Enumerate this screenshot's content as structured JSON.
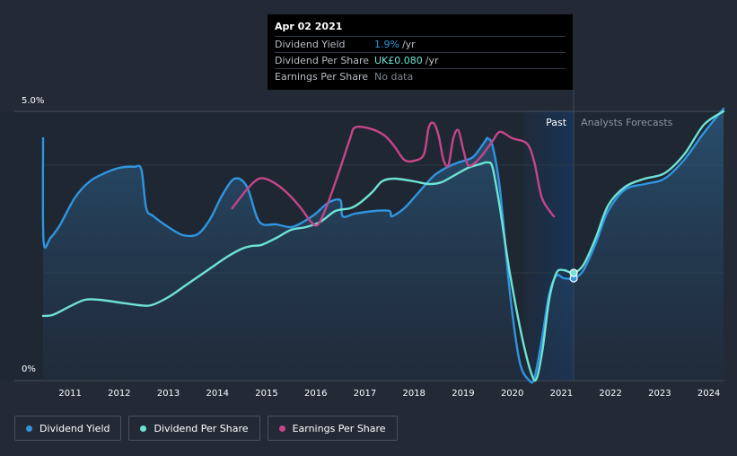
{
  "chart_data": {
    "type": "line",
    "title": "",
    "xlabel": "",
    "ylabel": "",
    "x_ticks": [
      "2011",
      "2012",
      "2013",
      "2014",
      "2015",
      "2016",
      "2017",
      "2018",
      "2019",
      "2020",
      "2021",
      "2022",
      "2023",
      "2024"
    ],
    "y_ticks": [
      "5.0%",
      "0%"
    ],
    "ylim": [
      0,
      5.0
    ],
    "xlim": [
      2010.45,
      2024.3
    ],
    "past_label": "Past",
    "forecast_label": "Analysts Forecasts",
    "forecast_start": 2021.25,
    "past_band_start": 2020.25,
    "series": [
      {
        "name": "Dividend Yield",
        "color": "#2f95e0",
        "area": true,
        "points": [
          [
            2010.45,
            4.5
          ],
          [
            2010.46,
            2.6
          ],
          [
            2010.6,
            2.65
          ],
          [
            2010.8,
            2.9
          ],
          [
            2011.1,
            3.4
          ],
          [
            2011.4,
            3.7
          ],
          [
            2011.7,
            3.85
          ],
          [
            2012.0,
            3.95
          ],
          [
            2012.3,
            3.97
          ],
          [
            2012.45,
            3.92
          ],
          [
            2012.55,
            3.2
          ],
          [
            2012.7,
            3.05
          ],
          [
            2013.0,
            2.85
          ],
          [
            2013.3,
            2.7
          ],
          [
            2013.6,
            2.72
          ],
          [
            2013.85,
            3.0
          ],
          [
            2014.1,
            3.45
          ],
          [
            2014.35,
            3.75
          ],
          [
            2014.6,
            3.6
          ],
          [
            2014.85,
            2.95
          ],
          [
            2015.2,
            2.9
          ],
          [
            2015.5,
            2.85
          ],
          [
            2015.75,
            2.95
          ],
          [
            2016.0,
            3.1
          ],
          [
            2016.25,
            3.3
          ],
          [
            2016.5,
            3.35
          ],
          [
            2016.55,
            3.05
          ],
          [
            2016.8,
            3.1
          ],
          [
            2017.2,
            3.15
          ],
          [
            2017.5,
            3.15
          ],
          [
            2017.55,
            3.05
          ],
          [
            2017.8,
            3.2
          ],
          [
            2018.1,
            3.5
          ],
          [
            2018.4,
            3.8
          ],
          [
            2018.65,
            3.95
          ],
          [
            2018.9,
            4.05
          ],
          [
            2019.2,
            4.15
          ],
          [
            2019.45,
            4.45
          ],
          [
            2019.5,
            4.5
          ],
          [
            2019.6,
            4.35
          ],
          [
            2019.75,
            3.55
          ],
          [
            2019.95,
            1.65
          ],
          [
            2020.15,
            0.35
          ],
          [
            2020.35,
            0.0
          ],
          [
            2020.45,
            0.05
          ],
          [
            2020.6,
            0.75
          ],
          [
            2020.75,
            1.6
          ],
          [
            2020.9,
            1.95
          ],
          [
            2021.05,
            1.9
          ],
          [
            2021.25,
            1.9
          ],
          [
            2021.45,
            2.05
          ],
          [
            2021.7,
            2.55
          ],
          [
            2021.95,
            3.15
          ],
          [
            2022.3,
            3.55
          ],
          [
            2022.7,
            3.65
          ],
          [
            2023.1,
            3.75
          ],
          [
            2023.5,
            4.1
          ],
          [
            2023.9,
            4.6
          ],
          [
            2024.3,
            5.05
          ]
        ]
      },
      {
        "name": "Dividend Per Share",
        "color": "#6ee3d4",
        "area": false,
        "points": [
          [
            2010.45,
            1.2
          ],
          [
            2010.65,
            1.22
          ],
          [
            2011.0,
            1.38
          ],
          [
            2011.3,
            1.5
          ],
          [
            2011.6,
            1.5
          ],
          [
            2012.0,
            1.45
          ],
          [
            2012.4,
            1.4
          ],
          [
            2012.65,
            1.4
          ],
          [
            2013.0,
            1.55
          ],
          [
            2013.4,
            1.8
          ],
          [
            2013.8,
            2.05
          ],
          [
            2014.2,
            2.3
          ],
          [
            2014.5,
            2.45
          ],
          [
            2014.7,
            2.5
          ],
          [
            2014.9,
            2.52
          ],
          [
            2015.2,
            2.65
          ],
          [
            2015.5,
            2.8
          ],
          [
            2015.8,
            2.85
          ],
          [
            2016.1,
            2.95
          ],
          [
            2016.4,
            3.15
          ],
          [
            2016.7,
            3.2
          ],
          [
            2016.9,
            3.3
          ],
          [
            2017.15,
            3.5
          ],
          [
            2017.35,
            3.7
          ],
          [
            2017.6,
            3.75
          ],
          [
            2018.0,
            3.7
          ],
          [
            2018.3,
            3.65
          ],
          [
            2018.55,
            3.68
          ],
          [
            2018.8,
            3.8
          ],
          [
            2019.1,
            3.95
          ],
          [
            2019.35,
            4.02
          ],
          [
            2019.5,
            4.05
          ],
          [
            2019.6,
            3.95
          ],
          [
            2019.75,
            3.2
          ],
          [
            2019.95,
            2.0
          ],
          [
            2020.2,
            0.8
          ],
          [
            2020.4,
            0.1
          ],
          [
            2020.5,
            0.05
          ],
          [
            2020.62,
            0.6
          ],
          [
            2020.75,
            1.5
          ],
          [
            2020.9,
            2.0
          ],
          [
            2021.05,
            2.05
          ],
          [
            2021.25,
            2.0
          ],
          [
            2021.45,
            2.15
          ],
          [
            2021.7,
            2.65
          ],
          [
            2021.95,
            3.25
          ],
          [
            2022.3,
            3.6
          ],
          [
            2022.7,
            3.75
          ],
          [
            2023.1,
            3.85
          ],
          [
            2023.5,
            4.2
          ],
          [
            2023.9,
            4.75
          ],
          [
            2024.3,
            5.0
          ]
        ]
      },
      {
        "name": "Earnings Per Share",
        "color": "#c6458a",
        "area": false,
        "points": [
          [
            2014.3,
            3.2
          ],
          [
            2014.6,
            3.55
          ],
          [
            2014.85,
            3.75
          ],
          [
            2015.1,
            3.7
          ],
          [
            2015.4,
            3.5
          ],
          [
            2015.7,
            3.2
          ],
          [
            2015.9,
            2.95
          ],
          [
            2016.05,
            2.9
          ],
          [
            2016.25,
            3.3
          ],
          [
            2016.5,
            3.95
          ],
          [
            2016.7,
            4.5
          ],
          [
            2016.8,
            4.7
          ],
          [
            2017.1,
            4.68
          ],
          [
            2017.4,
            4.55
          ],
          [
            2017.6,
            4.35
          ],
          [
            2017.8,
            4.1
          ],
          [
            2018.0,
            4.08
          ],
          [
            2018.2,
            4.2
          ],
          [
            2018.3,
            4.7
          ],
          [
            2018.4,
            4.78
          ],
          [
            2018.5,
            4.55
          ],
          [
            2018.6,
            4.1
          ],
          [
            2018.7,
            4.0
          ],
          [
            2018.8,
            4.5
          ],
          [
            2018.9,
            4.65
          ],
          [
            2019.0,
            4.3
          ],
          [
            2019.1,
            4.0
          ],
          [
            2019.25,
            4.05
          ],
          [
            2019.4,
            4.2
          ],
          [
            2019.6,
            4.45
          ],
          [
            2019.75,
            4.62
          ],
          [
            2020.0,
            4.5
          ],
          [
            2020.3,
            4.4
          ],
          [
            2020.45,
            4.05
          ],
          [
            2020.6,
            3.4
          ],
          [
            2020.8,
            3.1
          ],
          [
            2020.85,
            3.05
          ]
        ]
      }
    ],
    "marker_x": 2021.25
  },
  "tooltip": {
    "date": "Apr 02 2021",
    "rows": [
      {
        "label": "Dividend Yield",
        "value": "1.9%",
        "unit": "/yr",
        "color": "#2f95e0"
      },
      {
        "label": "Dividend Per Share",
        "value": "UK£0.080",
        "unit": "/yr",
        "color": "#6ee3d4"
      },
      {
        "label": "Earnings Per Share",
        "value": "No data",
        "unit": "",
        "color": "#7f8690"
      }
    ]
  },
  "legend": [
    {
      "label": "Dividend Yield",
      "color": "#2f95e0"
    },
    {
      "label": "Dividend Per Share",
      "color": "#6ee3d4"
    },
    {
      "label": "Earnings Per Share",
      "color": "#c6458a"
    }
  ]
}
